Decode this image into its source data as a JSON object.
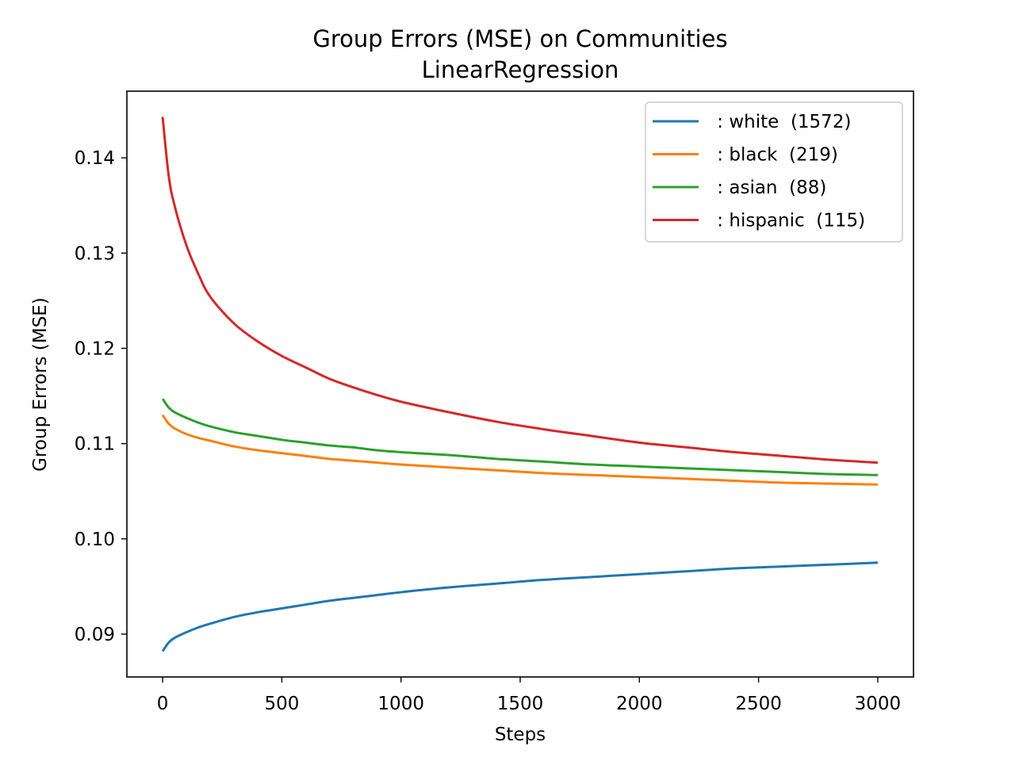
{
  "chart_data": {
    "type": "line",
    "title": "Group Errors (MSE) on Communities",
    "subtitle": "LinearRegression",
    "xlabel": "Steps",
    "ylabel": "Group Errors (MSE)",
    "xlim": [
      -150,
      3150
    ],
    "ylim": [
      0.0855,
      0.147
    ],
    "xticks": [
      0,
      500,
      1000,
      1500,
      2000,
      2500,
      3000
    ],
    "xtick_labels": [
      "0",
      "500",
      "1000",
      "1500",
      "2000",
      "2500",
      "3000"
    ],
    "yticks": [
      0.09,
      0.1,
      0.11,
      0.12,
      0.13,
      0.14
    ],
    "ytick_labels": [
      "0.09",
      "0.10",
      "0.11",
      "0.12",
      "0.13",
      "0.14"
    ],
    "grid": false,
    "legend_position": "top-right",
    "x": [
      0,
      25,
      50,
      100,
      150,
      200,
      300,
      400,
      500,
      600,
      700,
      800,
      900,
      1000,
      1200,
      1400,
      1600,
      1800,
      2000,
      2200,
      2400,
      2600,
      2800,
      3000
    ],
    "series": [
      {
        "name": "white",
        "label": " : white  (1572)",
        "color": "#1f77b4",
        "values": [
          0.0882,
          0.0891,
          0.0896,
          0.0902,
          0.0907,
          0.0911,
          0.0918,
          0.0923,
          0.0927,
          0.0931,
          0.0935,
          0.0938,
          0.0941,
          0.0944,
          0.0949,
          0.0953,
          0.0957,
          0.096,
          0.0963,
          0.0966,
          0.0969,
          0.0971,
          0.0973,
          0.0975
        ]
      },
      {
        "name": "black",
        "label": " : black  (219)",
        "color": "#ff7f0e",
        "values": [
          0.113,
          0.1121,
          0.1116,
          0.111,
          0.1106,
          0.1103,
          0.1097,
          0.1093,
          0.109,
          0.1087,
          0.1084,
          0.1082,
          0.108,
          0.1078,
          0.1075,
          0.1072,
          0.1069,
          0.1067,
          0.1065,
          0.1063,
          0.1061,
          0.1059,
          0.1058,
          0.1057
        ]
      },
      {
        "name": "asian",
        "label": " : asian  (88)",
        "color": "#2ca02c",
        "values": [
          0.1147,
          0.1138,
          0.1133,
          0.1127,
          0.1122,
          0.1118,
          0.1112,
          0.1108,
          0.1104,
          0.1101,
          0.1098,
          0.1096,
          0.1093,
          0.1091,
          0.1088,
          0.1084,
          0.1081,
          0.1078,
          0.1076,
          0.1074,
          0.1072,
          0.107,
          0.1068,
          0.1067
        ]
      },
      {
        "name": "hispanic",
        "label": " : hispanic  (115)",
        "color": "#d62728",
        "values": [
          0.1443,
          0.1382,
          0.135,
          0.1308,
          0.1278,
          0.1254,
          0.1226,
          0.1207,
          0.1192,
          0.118,
          0.1168,
          0.1159,
          0.1151,
          0.1144,
          0.1133,
          0.1123,
          0.1115,
          0.1108,
          0.1101,
          0.1096,
          0.1091,
          0.1087,
          0.1083,
          0.108
        ]
      }
    ]
  }
}
